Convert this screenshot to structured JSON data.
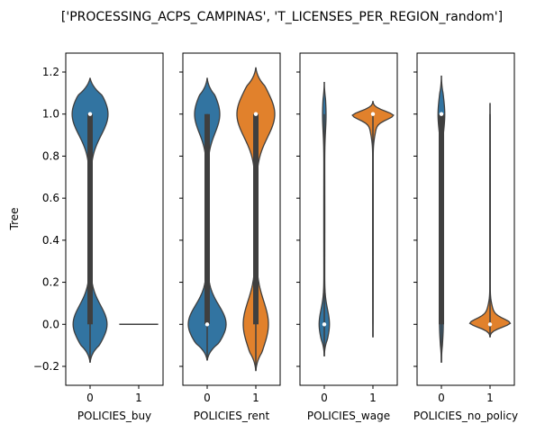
{
  "chart_data": {
    "type": "violin",
    "title": "['PROCESSING_ACPS_CAMPINAS', 'T_LICENSES_PER_REGION_random']",
    "ylabel": "Tree",
    "ylim": [
      -0.29,
      1.29
    ],
    "yticks": [
      "−0.2",
      "0.0",
      "0.2",
      "0.4",
      "0.6",
      "0.8",
      "1.0",
      "1.2"
    ],
    "ytick_values": [
      -0.2,
      0.0,
      0.2,
      0.4,
      0.6,
      0.8,
      1.0,
      1.2
    ],
    "colors": {
      "0": "#3274a1",
      "1": "#e1812c",
      "edge": "#3f3f3f"
    },
    "panels": [
      {
        "xlabel": "POLICIES_buy",
        "categories": [
          "0",
          "1"
        ],
        "violins": [
          {
            "category": "0",
            "range": [
              -0.18,
              1.17
            ],
            "median": 1.0,
            "q1": 0.0,
            "q3": 1.0,
            "modes": [
              {
                "y": 1.0,
                "width": 0.36,
                "spread": 0.1
              },
              {
                "y": 0.0,
                "width": 0.34,
                "spread": 0.09
              },
              {
                "y": 0.5,
                "width": 0.015,
                "spread": 0.5
              }
            ]
          },
          {
            "category": "1",
            "range": [
              0.0,
              0.0
            ],
            "flat": true
          }
        ]
      },
      {
        "xlabel": "POLICIES_rent",
        "categories": [
          "0",
          "1"
        ],
        "violins": [
          {
            "category": "0",
            "range": [
              -0.17,
              1.17
            ],
            "median": 0.0,
            "q1": 0.0,
            "q3": 1.0,
            "modes": [
              {
                "y": 1.0,
                "width": 0.25,
                "spread": 0.09
              },
              {
                "y": 0.0,
                "width": 0.38,
                "spread": 0.09
              },
              {
                "y": 0.5,
                "width": 0.015,
                "spread": 0.5
              }
            ]
          },
          {
            "category": "1",
            "range": [
              -0.22,
              1.22
            ],
            "median": 1.0,
            "q1": 0.0,
            "q3": 1.0,
            "modes": [
              {
                "y": 1.0,
                "width": 0.38,
                "spread": 0.11
              },
              {
                "y": 0.0,
                "width": 0.25,
                "spread": 0.11
              },
              {
                "y": 0.5,
                "width": 0.015,
                "spread": 0.5
              }
            ]
          }
        ]
      },
      {
        "xlabel": "POLICIES_wage",
        "categories": [
          "0",
          "1"
        ],
        "violins": [
          {
            "category": "0",
            "range": [
              -0.15,
              1.15
            ],
            "median": 0.0,
            "q1": 0.0,
            "q3": 0.0,
            "modes": [
              {
                "y": 0.0,
                "width": 0.1,
                "spread": 0.07
              },
              {
                "y": 1.0,
                "width": 0.03,
                "spread": 0.08
              },
              {
                "y": 0.5,
                "width": 0.01,
                "spread": 0.5
              }
            ]
          },
          {
            "category": "1",
            "range": [
              -0.06,
              1.06
            ],
            "median": 1.0,
            "q1": 1.0,
            "q3": 1.0,
            "modes": [
              {
                "y": 1.0,
                "width": 0.4,
                "spread": 0.025
              },
              {
                "y": 0.95,
                "width": 0.06,
                "spread": 0.05
              },
              {
                "y": 0.5,
                "width": 0.006,
                "spread": 0.5
              }
            ]
          }
        ]
      },
      {
        "xlabel": "POLICIES_no_policy",
        "categories": [
          "0",
          "1"
        ],
        "violins": [
          {
            "category": "0",
            "range": [
              -0.18,
              1.18
            ],
            "median": 1.0,
            "q1": 0.0,
            "q3": 1.0,
            "modes": [
              {
                "y": 1.0,
                "width": 0.06,
                "spread": 0.08
              },
              {
                "y": 0.0,
                "width": 0.03,
                "spread": 0.08
              },
              {
                "y": 0.5,
                "width": 0.015,
                "spread": 0.5
              }
            ]
          },
          {
            "category": "1",
            "range": [
              -0.06,
              1.05
            ],
            "median": 0.0,
            "q1": 0.0,
            "q3": 0.0,
            "modes": [
              {
                "y": 0.0,
                "width": 0.4,
                "spread": 0.025
              },
              {
                "y": 0.05,
                "width": 0.06,
                "spread": 0.04
              },
              {
                "y": 0.5,
                "width": 0.006,
                "spread": 0.5
              }
            ]
          }
        ]
      }
    ]
  }
}
